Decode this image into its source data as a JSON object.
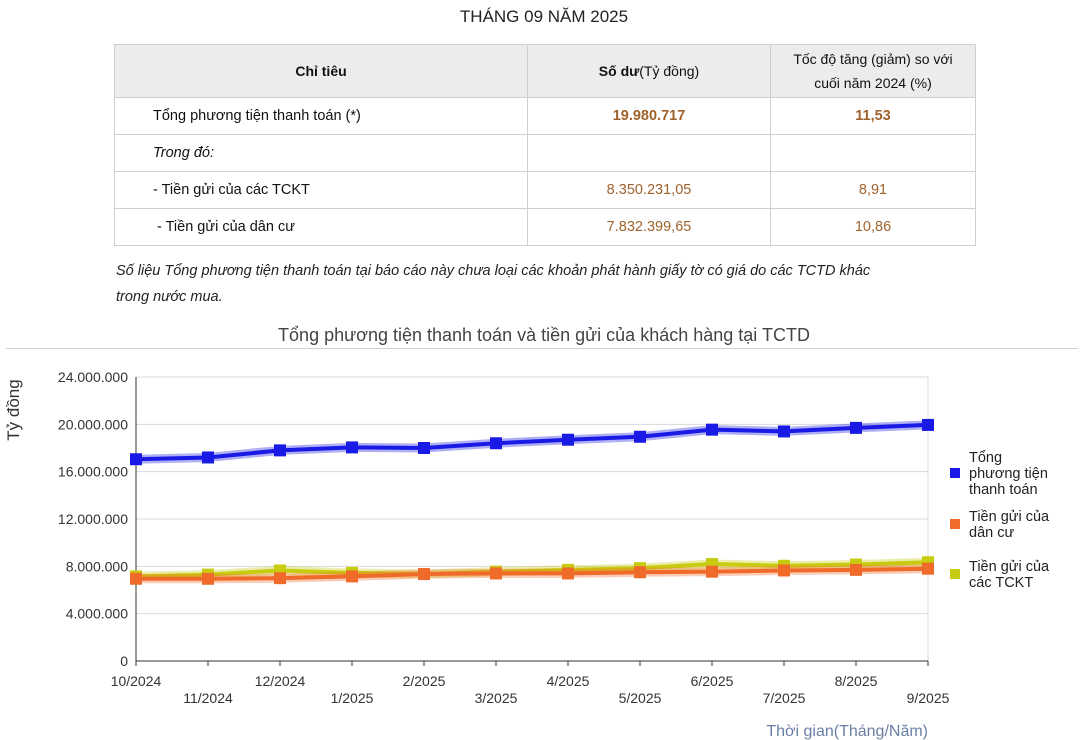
{
  "page_title": "THÁNG 09 NĂM 2025",
  "table": {
    "headers": {
      "col1": "Chỉ tiêu",
      "col2_bold": "Số dư",
      "col2_rest": "(Tỷ đồng)",
      "col3_line1": "Tốc độ tăng (giảm) so với",
      "col3_line2": "cuối năm 2024 (%)"
    },
    "rows": [
      {
        "label": "Tổng phương tiện thanh toán (*)",
        "value": "19.980.717",
        "rate": "11,53"
      },
      {
        "label": "Trong đó:",
        "value": "",
        "rate": ""
      },
      {
        "label": "- Tiền gửi của các TCKT",
        "value": "8.350.231,05",
        "rate": "8,91"
      },
      {
        "label": "- Tiền gửi của dân cư",
        "value": "7.832.399,65",
        "rate": "10,86"
      }
    ]
  },
  "footnote_line1": "Số liệu Tổng phương tiện thanh toán tại báo cáo này chưa loại các khoản phát hành giấy tờ có giá do các TCTD khác",
  "footnote_line2": "trong nước mua.",
  "chart_data": {
    "type": "line",
    "title": "Tổng phương tiện thanh toán và tiền gửi của khách hàng tại TCTD",
    "xlabel": "Thời gian(Tháng/Năm)",
    "ylabel": "Tỷ đồng",
    "ylim": [
      0,
      24000000
    ],
    "yticks": [
      0,
      4000000,
      8000000,
      12000000,
      16000000,
      20000000,
      24000000
    ],
    "ytick_labels": [
      "0",
      "4.000.000",
      "8.000.000",
      "12.000.000",
      "16.000.000",
      "20.000.000",
      "24.000.000"
    ],
    "grid": true,
    "legend_position": "right",
    "categories": [
      "10/2024",
      "11/2024",
      "12/2024",
      "1/2025",
      "2/2025",
      "3/2025",
      "4/2025",
      "5/2025",
      "6/2025",
      "7/2025",
      "8/2025",
      "9/2025"
    ],
    "series": [
      {
        "name": "Tổng phương tiện thanh toán",
        "legend_lines": [
          "Tổng",
          "phương tiện",
          "thanh toán"
        ],
        "color": "#1a1ae6",
        "values": [
          17050000,
          17200000,
          17800000,
          18050000,
          18000000,
          18400000,
          18700000,
          18950000,
          19550000,
          19400000,
          19700000,
          19950000
        ]
      },
      {
        "name": "Tiền gửi của dân cư",
        "legend_lines": [
          "Tiền gửi của",
          "dân cư"
        ],
        "color": "#f06a2a",
        "values": [
          6950000,
          6950000,
          7000000,
          7150000,
          7350000,
          7400000,
          7400000,
          7500000,
          7550000,
          7650000,
          7700000,
          7800000
        ]
      },
      {
        "name": "Tiền gửi của các TCKT",
        "legend_lines": [
          "Tiền gửi của",
          "các TCKT"
        ],
        "color": "#c8cc10",
        "values": [
          7150000,
          7300000,
          7650000,
          7450000,
          7350000,
          7550000,
          7700000,
          7850000,
          8200000,
          8050000,
          8150000,
          8350000
        ]
      }
    ]
  }
}
